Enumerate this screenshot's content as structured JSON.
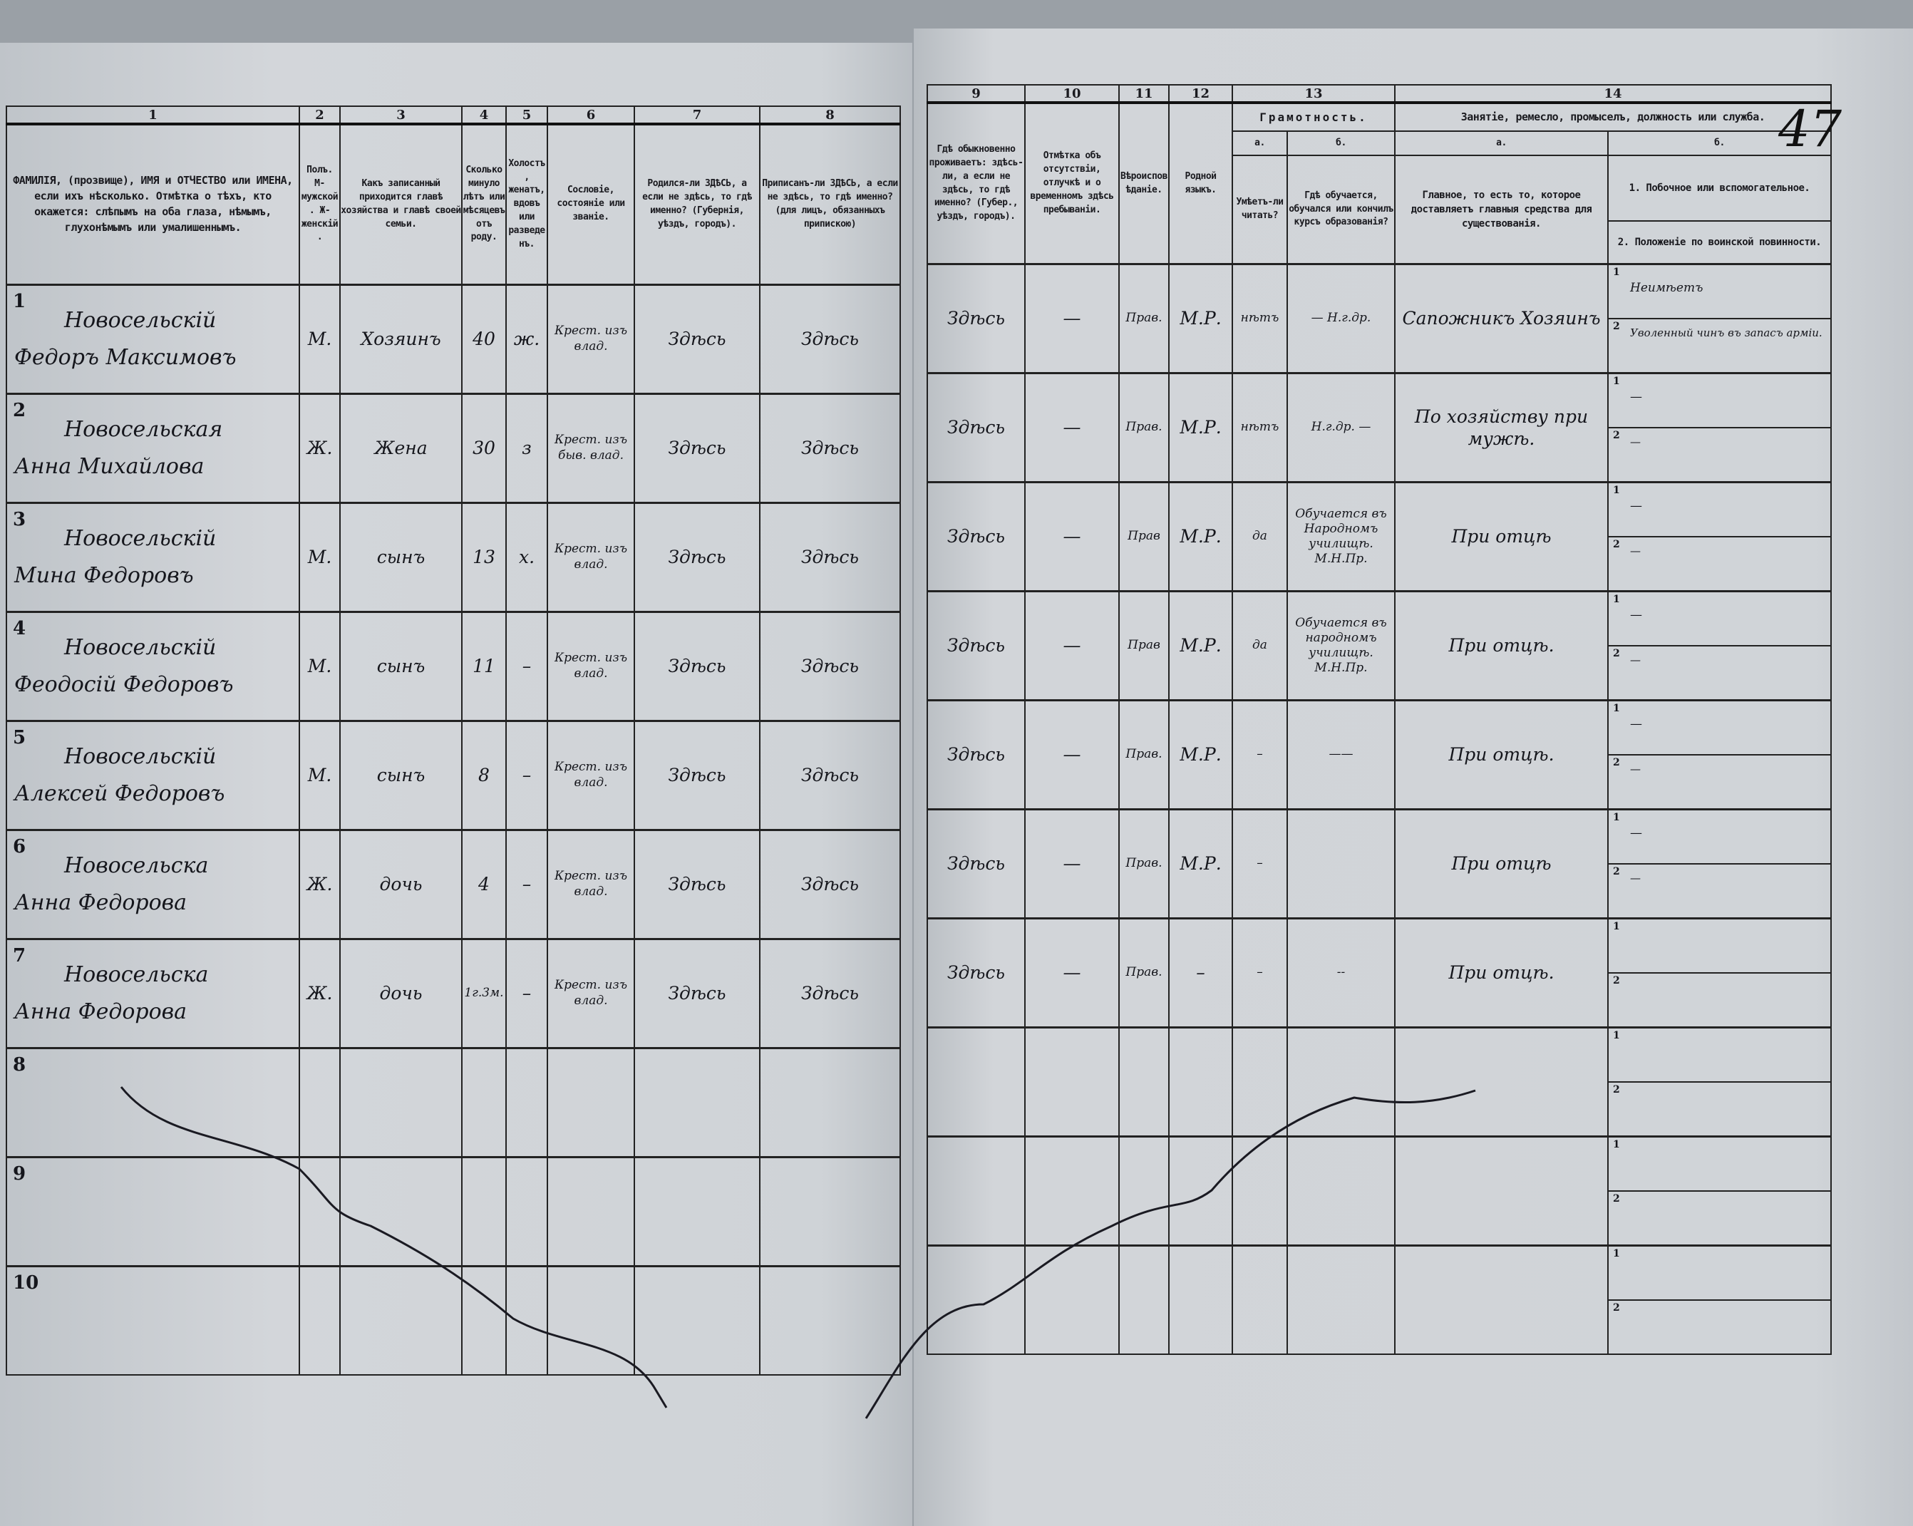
{
  "page_number": "47",
  "left": {
    "col_numbers": [
      "1",
      "2",
      "3",
      "4",
      "5",
      "6",
      "7",
      "8"
    ],
    "headers": [
      "ФАМИЛІЯ, (прозвище), ИМЯ и ОТЧЕСТВО или ИМЕНА, если ихъ нѣсколько. Отмѣтка о тѣхъ, кто окажется: слѣпымъ на оба глаза, нѣмымъ, глухонѣмымъ или умалишеннымъ.",
      "Полъ. М-мужской. Ж-женскій.",
      "Какъ записанный приходится главѣ хозяйства и главѣ своей семьи.",
      "Сколько минуло лѣтъ или мѣсяцевъ отъ роду.",
      "Холостъ, женатъ, вдовъ или разведенъ.",
      "Сословіе, состояніе или званіе.",
      "Родился-ли ЗДѢСЬ, а если не здѣсь, то гдѣ именно? (Губернія, уѣздъ, городъ).",
      "Приписанъ-ли ЗДѢСЬ, а если не здѣсь, то гдѣ именно? (для лицъ, обязанныхъ припискою)"
    ]
  },
  "right": {
    "col_numbers": [
      "9",
      "10",
      "11",
      "12",
      "13",
      "14"
    ],
    "headers": {
      "c9": "Гдѣ обыкновенно проживаетъ: здѣсь-ли, а если не здѣсь, то гдѣ именно? (Губер., уѣздъ, городъ).",
      "c10": "Отмѣтка объ отсутствіи, отлучкѣ и о временномъ здѣсь пребываніи.",
      "c11": "Вѣроисповѣданіе.",
      "c12": "Родной языкъ.",
      "c13": "Грамотность.",
      "c13a_key": "а.",
      "c13a": "Умѣетъ-ли читать?",
      "c13b_key": "б.",
      "c13b": "Гдѣ обучается, обучался или кончилъ курсъ образованія?",
      "c14": "Занятіе, ремесло, промыселъ, должность или служба.",
      "c14a_key": "а.",
      "c14a": "Главное, то есть то, которое доставляетъ главныя средства для существованія.",
      "c14b_key": "б.",
      "c14b1": "1. Побочное или вспомогательное.",
      "c14b2": "2. Положеніе по воинской повинности."
    }
  },
  "rows": [
    {
      "n": "1",
      "surname": "Новосельскій",
      "name": "Федоръ Максимовъ",
      "sex": "М.",
      "relation": "Хозяинъ",
      "age": "40",
      "marital": "ж.",
      "estate": "Крест. изъ влад.",
      "born": "Здѣсь",
      "registered": "Здѣсь",
      "residence": "Здѣсь",
      "absence": "—",
      "religion": "Прав.",
      "language": "М.Р.",
      "literate": "нѣтъ",
      "school": "— Н.г.др.",
      "occupation": "Сапожникъ Хозяинъ",
      "secondary": "Неимѣетъ",
      "military": "Уволенный чинъ въ запасъ арміи."
    },
    {
      "n": "2",
      "surname": "Новосельская",
      "name": "Анна Михайлова",
      "sex": "Ж.",
      "relation": "Жена",
      "age": "30",
      "marital": "з",
      "estate": "Крест. изъ быв. влад.",
      "born": "Здѣсь",
      "registered": "Здѣсь",
      "residence": "Здѣсь",
      "absence": "—",
      "religion": "Прав.",
      "language": "М.Р.",
      "literate": "нѣтъ",
      "school": "Н.г.др. —",
      "occupation": "По хозяйству при мужѣ.",
      "secondary": "—",
      "military": "—"
    },
    {
      "n": "3",
      "surname": "Новосельскій",
      "name": "Мина Федоровъ",
      "sex": "М.",
      "relation": "сынъ",
      "age": "13",
      "marital": "х.",
      "estate": "Крест. изъ влад.",
      "born": "Здѣсь",
      "registered": "Здѣсь",
      "residence": "Здѣсь",
      "absence": "—",
      "religion": "Прав",
      "language": "М.Р.",
      "literate": "да",
      "school": "Обучается въ Народномъ училищѣ. М.Н.Пр.",
      "occupation": "При отцѣ",
      "secondary": "—",
      "military": "—"
    },
    {
      "n": "4",
      "surname": "Новосельскій",
      "name": "Феодосій Федоровъ",
      "sex": "М.",
      "relation": "сынъ",
      "age": "11",
      "marital": "–",
      "estate": "Крест. изъ влад.",
      "born": "Здѣсь",
      "registered": "Здѣсь",
      "residence": "Здѣсь",
      "absence": "—",
      "religion": "Прав",
      "language": "М.Р.",
      "literate": "да",
      "school": "Обучается въ народномъ училищѣ. М.Н.Пр.",
      "occupation": "При отцѣ.",
      "secondary": "—",
      "military": "—"
    },
    {
      "n": "5",
      "surname": "Новосельскій",
      "name": "Алексей Федоровъ",
      "sex": "М.",
      "relation": "сынъ",
      "age": "8",
      "marital": "–",
      "estate": "Крест. изъ влад.",
      "born": "Здѣсь",
      "registered": "Здѣсь",
      "residence": "Здѣсь",
      "absence": "—",
      "religion": "Прав.",
      "language": "М.Р.",
      "literate": "–",
      "school": "——",
      "occupation": "При отцѣ.",
      "secondary": "—",
      "military": "—"
    },
    {
      "n": "6",
      "surname": "Новосельска",
      "name": "Анна Федорова",
      "sex": "Ж.",
      "relation": "дочь",
      "age": "4",
      "marital": "–",
      "estate": "Крест. изъ влад.",
      "born": "Здѣсь",
      "registered": "Здѣсь",
      "residence": "Здѣсь",
      "absence": "—",
      "religion": "Прав.",
      "language": "М.Р.",
      "literate": "–",
      "school": "",
      "occupation": "При отцѣ",
      "secondary": "—",
      "military": "—"
    },
    {
      "n": "7",
      "surname": "Новосельска",
      "name": "Анна Федорова",
      "sex": "Ж.",
      "relation": "дочь",
      "age": "1г.3м.",
      "marital": "–",
      "estate": "Крест. изъ влад.",
      "born": "Здѣсь",
      "registered": "Здѣсь",
      "residence": "Здѣсь",
      "absence": "—",
      "religion": "Прав.",
      "language": "–",
      "literate": "–",
      "school": "--",
      "occupation": "При отцѣ.",
      "secondary": "",
      "military": ""
    },
    {
      "n": "8"
    },
    {
      "n": "9"
    },
    {
      "n": "10"
    }
  ],
  "sub_keys": [
    "1",
    "2"
  ]
}
